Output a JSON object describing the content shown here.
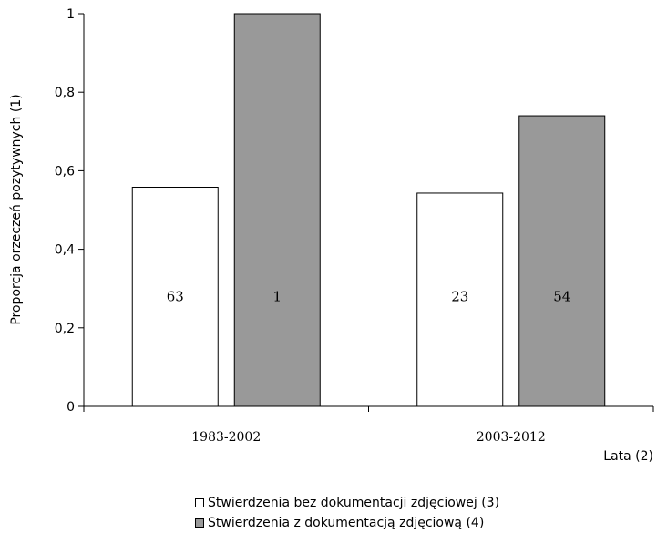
{
  "chart_data": {
    "type": "bar",
    "categories": [
      "1983-2002",
      "2003-2012"
    ],
    "series": [
      {
        "name": "Stwierdzenia bez dokumentacji zdjęciowej (3)",
        "values": [
          0.558,
          0.543
        ],
        "labels": [
          "63",
          "23"
        ],
        "color": "#ffffff"
      },
      {
        "name": "Stwierdzenia z dokumentacją zdjęciową (4)",
        "values": [
          1.0,
          0.74
        ],
        "labels": [
          "1",
          "54"
        ],
        "color": "#999999"
      }
    ],
    "ylabel": "Proporcja orzeczeń pozytywnych (1)",
    "xlabel": "Lata (2)",
    "ylim": [
      0,
      1
    ],
    "yticks": [
      {
        "value": 0,
        "label": "0"
      },
      {
        "value": 0.2,
        "label": "0,2"
      },
      {
        "value": 0.4,
        "label": "0,4"
      },
      {
        "value": 0.6,
        "label": "0,6"
      },
      {
        "value": 0.8,
        "label": "0,8"
      },
      {
        "value": 1,
        "label": "1"
      }
    ],
    "grid": false,
    "legend_position": "bottom"
  }
}
